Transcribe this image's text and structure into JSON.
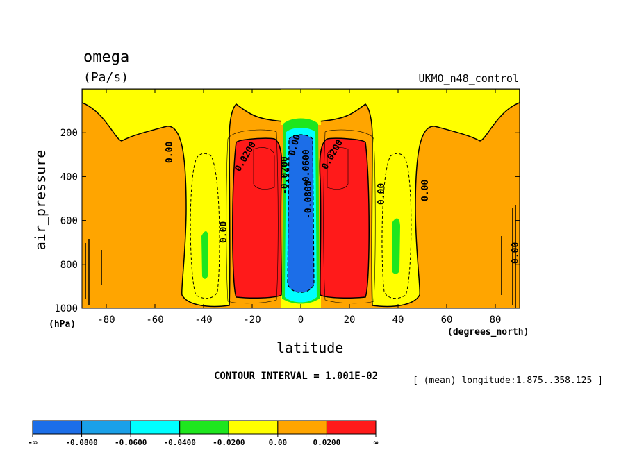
{
  "chart_data": {
    "type": "heatmap",
    "title": "omega",
    "units": "(Pa/s)",
    "dataset": "UKMO_n48_control",
    "xlabel": "latitude",
    "x_units": "(degrees_north)",
    "ylabel": "air_pressure",
    "y_units": "(hPa)",
    "xlim": [
      -90,
      90
    ],
    "ylim": [
      1000,
      0
    ],
    "x_ticks": [
      -80,
      -60,
      -40,
      -20,
      0,
      20,
      40,
      60,
      80
    ],
    "y_ticks": [
      200,
      400,
      600,
      800,
      1000
    ],
    "x_tick_labels": [
      "-80",
      "-60",
      "-40",
      "-20",
      "0",
      "20",
      "40",
      "60",
      "80"
    ],
    "y_tick_labels": [
      "200",
      "400",
      "600",
      "800",
      "1000"
    ],
    "contour_interval": "CONTOUR INTERVAL = 1.001E-02",
    "mean_note": "[ (mean) longitude:1.875..358.125 ]",
    "colorbar": {
      "colors": [
        "#1c6ee8",
        "#1aa0e8",
        "#00ffff",
        "#1ee61e",
        "#ffff00",
        "#ffa500",
        "#ff1a1a"
      ],
      "labels": [
        "-∞",
        "-0.0800",
        "-0.0600",
        "-0.0400",
        "-0.0200",
        "0.00",
        "0.0200",
        "∞"
      ]
    },
    "contour_labels": [
      "0.00",
      "0.00",
      "0.0200",
      "-0.0200",
      "0.00",
      "0.0200",
      "-0.0600",
      "-0.0800",
      "0.00",
      "0.00",
      "0.00"
    ],
    "regions": [
      {
        "level": "0.00 to 0.0200",
        "description": "background",
        "color": "#ffa500"
      },
      {
        "level": "-0.0200 to 0.00",
        "lat": [
          -52,
          -30
        ],
        "pressure": [
          200,
          1000
        ],
        "color": "#ffff00"
      },
      {
        "level": "-0.0200 to 0.00",
        "lat": [
          30,
          52
        ],
        "pressure": [
          200,
          1000
        ],
        "color": "#ffff00"
      },
      {
        "level": "-0.0200 to 0.00",
        "lat": [
          -10,
          10
        ],
        "pressure": [
          0,
          200
        ],
        "color": "#ffff00"
      },
      {
        "level": "0.0200 to max",
        "lat": [
          -27,
          -8
        ],
        "pressure": [
          220,
          920
        ],
        "color": "#ff1a1a"
      },
      {
        "level": "0.0200 to max",
        "lat": [
          8,
          27
        ],
        "pressure": [
          220,
          920
        ],
        "color": "#ff1a1a"
      },
      {
        "level": "min to -0.0800",
        "lat": [
          -4,
          4
        ],
        "pressure": [
          180,
          930
        ],
        "color": "#1c6ee8"
      },
      {
        "level": "-0.0600 to -0.0400",
        "lat": [
          -42,
          -38
        ],
        "pressure": [
          640,
          870
        ],
        "color": "#1ee61e"
      },
      {
        "level": "-0.0600 to -0.0400",
        "lat": [
          37,
          42
        ],
        "pressure": [
          590,
          870
        ],
        "color": "#1ee61e"
      }
    ]
  }
}
